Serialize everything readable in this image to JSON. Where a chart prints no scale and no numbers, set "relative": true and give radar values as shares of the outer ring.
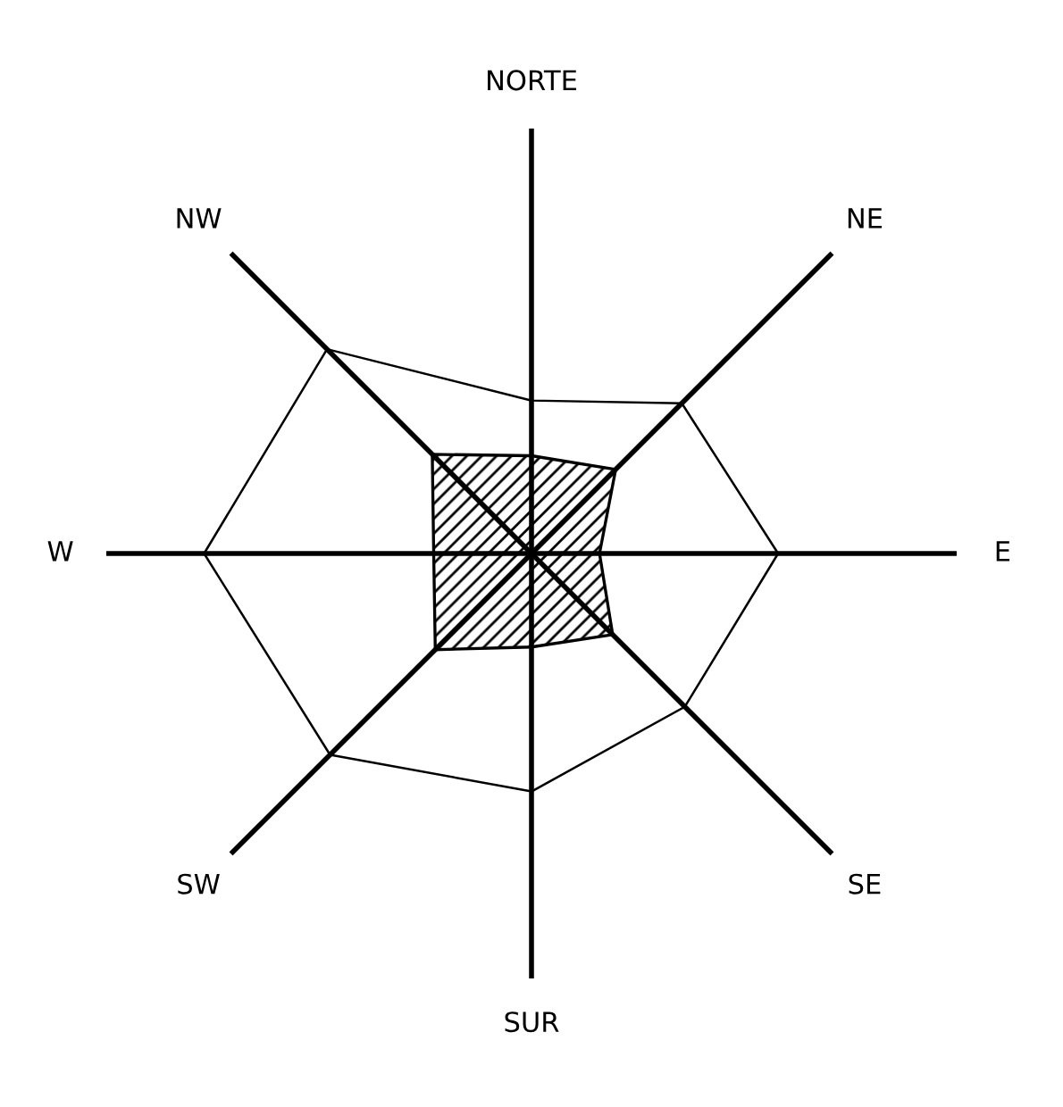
{
  "chart_data": {
    "type": "radar",
    "relative": true,
    "categories": [
      "NORTE",
      "NE",
      "E",
      "SE",
      "SUR",
      "SW",
      "W",
      "NW"
    ],
    "series": [
      {
        "color": "#000000",
        "values": [
          0.36,
          0.5,
          0.58,
          0.51,
          0.56,
          0.67,
          0.77,
          0.68
        ]
      },
      {
        "type": "area",
        "color": "#000000",
        "values": [
          0.23,
          0.28,
          0.16,
          0.27,
          0.22,
          0.32,
          0.23,
          0.33
        ]
      }
    ]
  }
}
